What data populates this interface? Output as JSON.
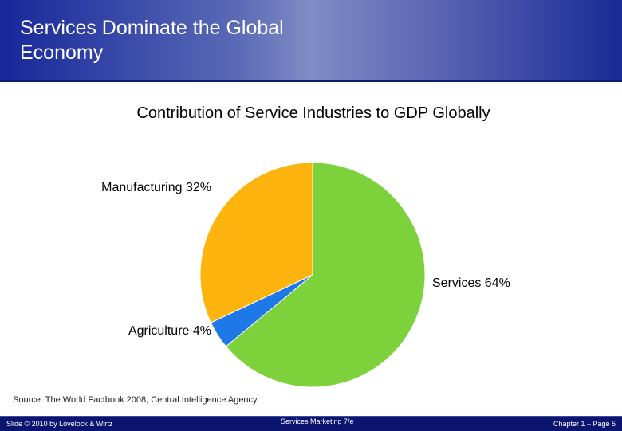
{
  "slide": {
    "title_lines": [
      "Services Dominate the Global",
      "Economy"
    ]
  },
  "chart_data": {
    "type": "pie",
    "title": "Contribution of Service Industries to GDP Globally",
    "categories": [
      "Services",
      "Agriculture",
      "Manufacturing"
    ],
    "values": [
      64,
      4,
      32
    ],
    "labels": [
      "Services 64%",
      "Agriculture 4%",
      "Manufacturing 32%"
    ],
    "colors": [
      "#7dd13a",
      "#1f78e8",
      "#fdb40f"
    ]
  },
  "source": "Source: The World Factbook 2008, Central Intelligence Agency",
  "footer": {
    "left": "Slide © 2010 by Lovelock & Wirtz",
    "center": "Services Marketing 7/e",
    "right": "Chapter 1 – Page 5"
  }
}
